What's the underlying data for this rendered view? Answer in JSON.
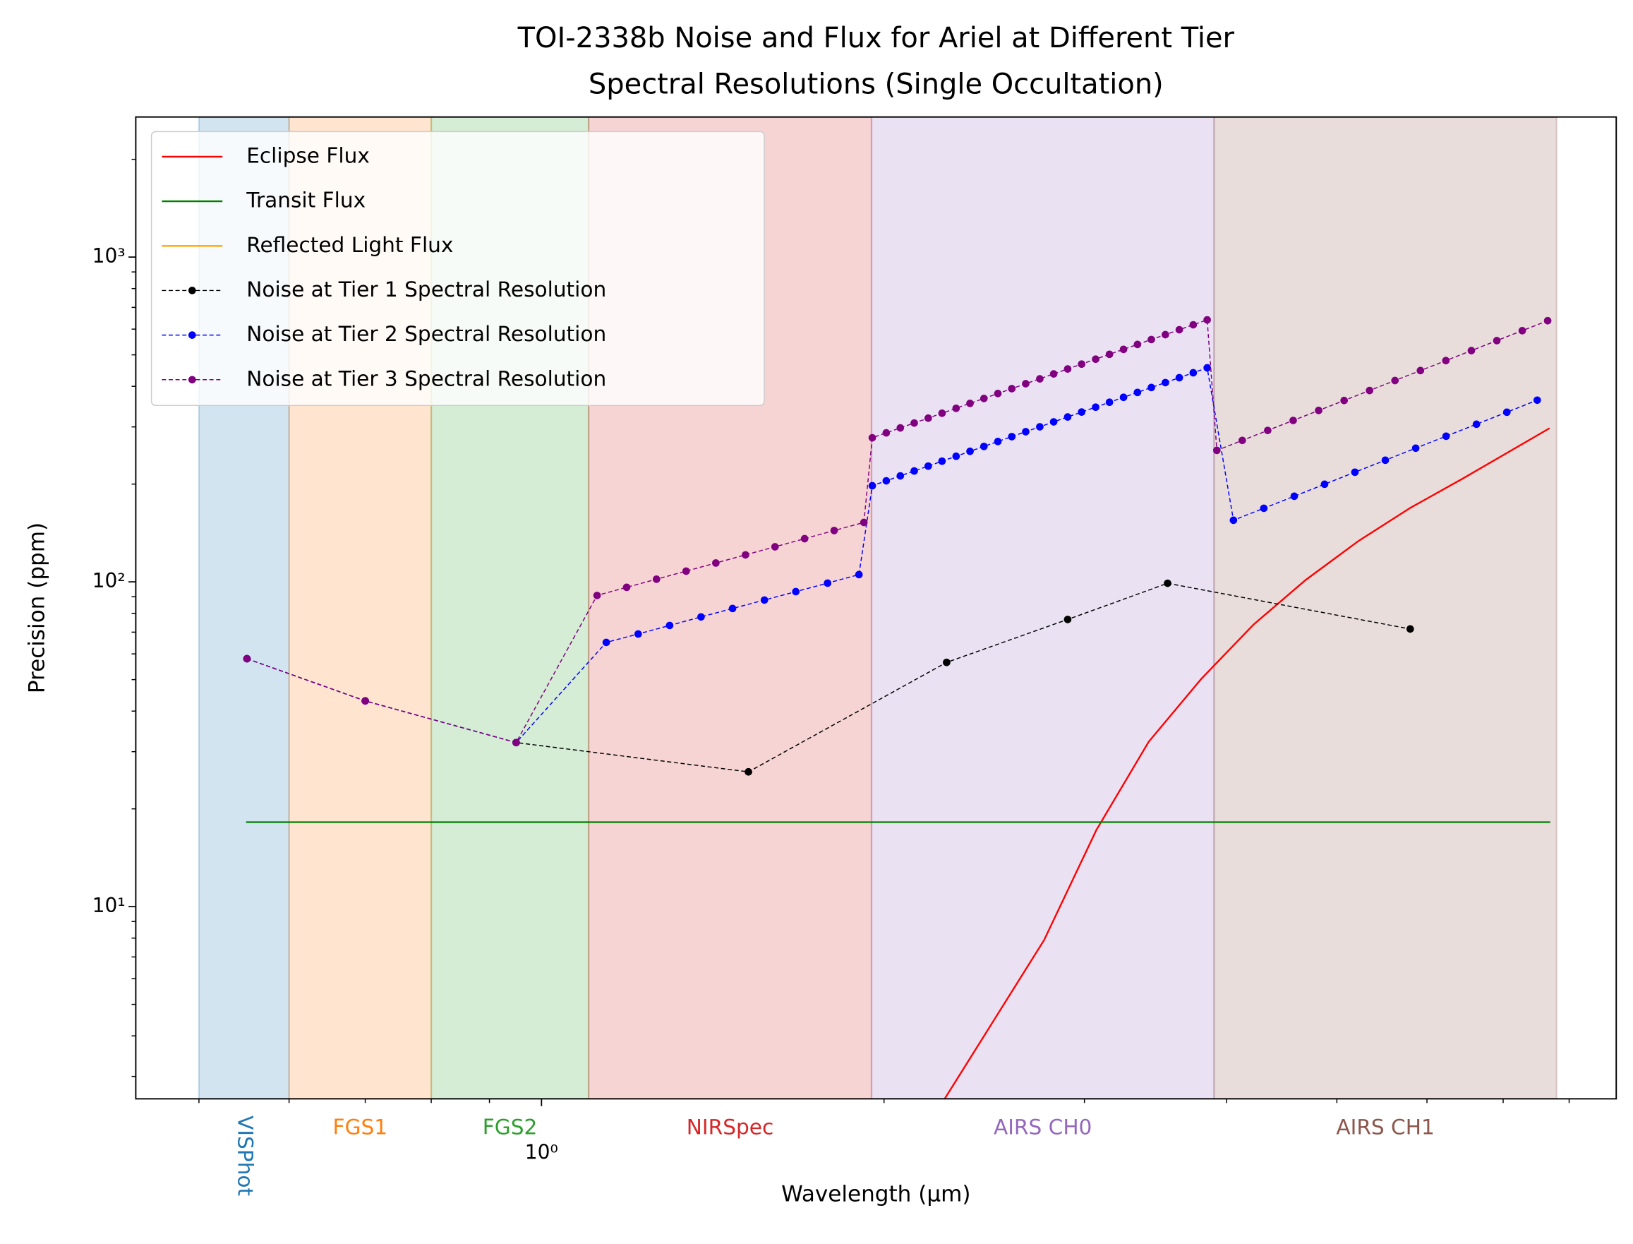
{
  "chart_data": {
    "type": "line",
    "title": [
      "TOI-2338b Noise and Flux for Ariel at Different Tier",
      "Spectral Resolutions (Single Occultation)"
    ],
    "xlabel": "Wavelength (μm)",
    "ylabel": "Precision (ppm)",
    "xscale": "log",
    "yscale": "log",
    "xlim": [
      0.44,
      8.8
    ],
    "ylim": [
      2.56,
      2700
    ],
    "xticks": [
      {
        "value": 1,
        "label": "10⁰"
      }
    ],
    "xminorticks": [
      0.5,
      0.6,
      0.7,
      0.8,
      0.9,
      2,
      3,
      4,
      5,
      6,
      7,
      8
    ],
    "yticks": [
      {
        "value": 10,
        "label": "10¹"
      },
      {
        "value": 100,
        "label": "10²"
      },
      {
        "value": 1000,
        "label": "10³"
      }
    ],
    "yminorticks": [
      3,
      4,
      5,
      6,
      7,
      8,
      9,
      20,
      30,
      40,
      50,
      60,
      70,
      80,
      90,
      200,
      300,
      400,
      500,
      600,
      700,
      800,
      900,
      2000
    ],
    "legend": "upper left",
    "regions": [
      {
        "name": "VISPhot",
        "color": "#1f77b4",
        "range": [
          0.5,
          0.6
        ]
      },
      {
        "name": "FGS1",
        "color": "#ff7f0e",
        "range": [
          0.6,
          0.8
        ]
      },
      {
        "name": "FGS2",
        "color": "#2ca02c",
        "range": [
          0.8,
          1.1
        ]
      },
      {
        "name": "NIRSpec",
        "color": "#d62728",
        "range": [
          1.1,
          1.95
        ]
      },
      {
        "name": "AIRS CH0",
        "color": "#9467bd",
        "range": [
          1.95,
          3.9
        ]
      },
      {
        "name": "AIRS CH1",
        "color": "#8c564b",
        "range": [
          3.9,
          7.8
        ]
      }
    ],
    "series": [
      {
        "name": "Eclipse Flux",
        "color": "#ff0000",
        "style": "solid",
        "x": [
          2.261,
          2.765,
          3.073,
          3.417,
          3.799,
          4.223,
          4.695,
          5.22,
          5.802,
          6.451,
          7.69
        ],
        "values": [
          2.56,
          7.89,
          17.2,
          32.2,
          50.2,
          73.8,
          101.4,
          133.4,
          169.0,
          208.0,
          297.2
        ]
      },
      {
        "name": "Transit Flux",
        "color": "#008000",
        "style": "solid",
        "x": [
          0.55,
          7.7
        ],
        "values": [
          18.2,
          18.2
        ]
      },
      {
        "name": "Reflected Light Flux",
        "color": "#ffa500",
        "style": "solid",
        "x": [],
        "values": []
      },
      {
        "name": "Noise at Tier 1 Spectral Resolution",
        "color": "#000000",
        "style": "dashed",
        "x": [
          0.551,
          0.7,
          0.95,
          1.52,
          2.27,
          2.9,
          3.55,
          5.8
        ],
        "values": [
          58,
          43,
          32,
          26,
          56.5,
          76.6,
          99,
          71.6
        ]
      },
      {
        "name": "Noise at Tier 2 Spectral Resolution",
        "color": "#0000ff",
        "style": "dashed",
        "x": [
          0.551,
          0.7,
          0.95,
          1.14,
          1.216,
          1.296,
          1.381,
          1.472,
          1.57,
          1.673,
          1.784,
          1.901,
          1.953,
          2.009,
          2.067,
          2.126,
          2.187,
          2.249,
          2.314,
          2.38,
          2.448,
          2.518,
          2.59,
          2.664,
          2.741,
          2.819,
          2.9,
          2.983,
          3.069,
          3.156,
          3.247,
          3.34,
          3.435,
          3.534,
          3.635,
          3.739,
          3.846,
          4.056,
          4.313,
          4.587,
          4.877,
          5.186,
          5.515,
          5.865,
          6.237,
          6.632,
          7.053,
          7.5
        ],
        "values": [
          58,
          43,
          32,
          65.1,
          69.1,
          73.4,
          78.0,
          82.8,
          87.9,
          93.3,
          99.1,
          105.3,
          197.7,
          204.7,
          212.0,
          219.5,
          227.2,
          235.3,
          243.6,
          252.3,
          261.2,
          270.5,
          280.0,
          290.0,
          300.2,
          310.9,
          321.9,
          333.3,
          345.1,
          357.3,
          370.0,
          383.1,
          396.7,
          410.7,
          425.3,
          440.4,
          456.0,
          154.8,
          168.5,
          183.5,
          199.8,
          217.6,
          236.9,
          258.0,
          280.9,
          305.8,
          333.0,
          362.6
        ]
      },
      {
        "name": "Noise at Tier 3 Spectral Resolution",
        "color": "#800080",
        "style": "dashed",
        "x": [
          0.551,
          0.7,
          0.95,
          1.119,
          1.188,
          1.262,
          1.34,
          1.423,
          1.511,
          1.604,
          1.703,
          1.808,
          1.92,
          1.953,
          2.009,
          2.067,
          2.126,
          2.187,
          2.249,
          2.314,
          2.38,
          2.448,
          2.518,
          2.59,
          2.664,
          2.741,
          2.819,
          2.9,
          2.983,
          3.069,
          3.156,
          3.247,
          3.34,
          3.435,
          3.534,
          3.635,
          3.739,
          3.846,
          3.922,
          4.129,
          4.347,
          4.577,
          4.819,
          5.074,
          5.342,
          5.624,
          5.921,
          6.234,
          6.564,
          6.911,
          7.276,
          7.66
        ],
        "values": [
          58,
          43,
          32,
          90.8,
          96.2,
          101.9,
          107.9,
          114.3,
          121.1,
          128.2,
          135.8,
          143.9,
          152.4,
          277.8,
          287.6,
          297.9,
          308.4,
          319.2,
          330.6,
          342.3,
          354.5,
          367.0,
          380.1,
          393.4,
          407.5,
          421.8,
          436.8,
          452.3,
          468.3,
          484.9,
          502.0,
          519.9,
          538.3,
          557.4,
          577.0,
          597.5,
          618.8,
          640.7,
          254.0,
          272.6,
          292.6,
          314.0,
          337.1,
          361.8,
          388.3,
          416.7,
          447.3,
          480.0,
          515.2,
          553.0,
          593.5,
          637.0
        ]
      }
    ]
  }
}
